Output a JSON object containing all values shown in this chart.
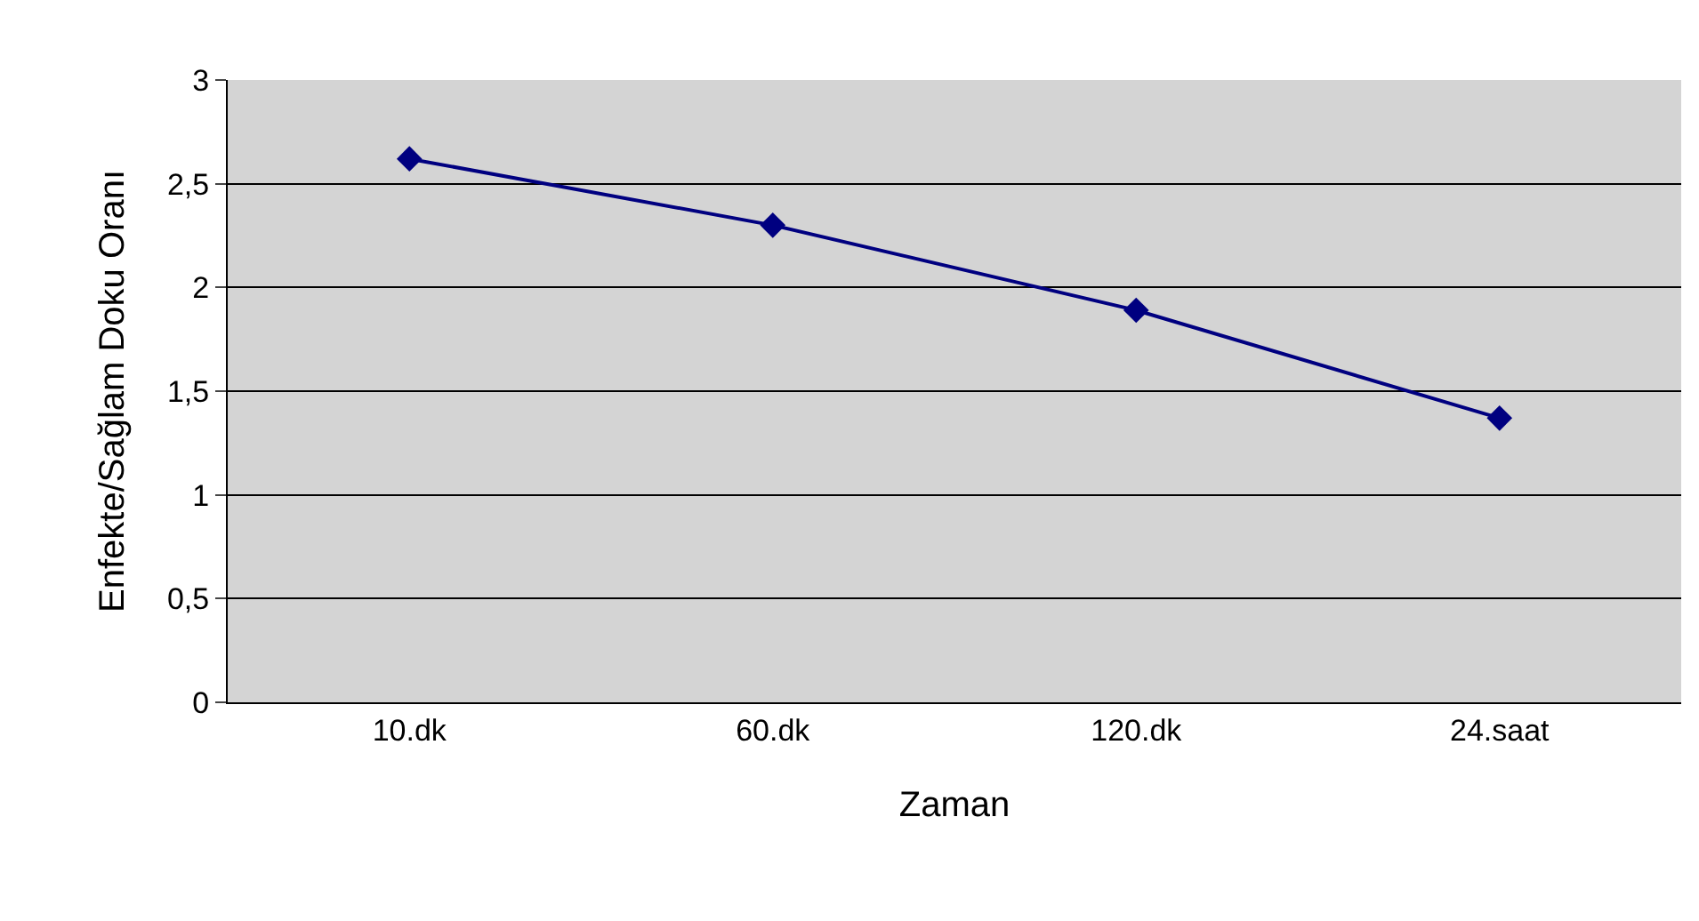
{
  "chart_data": {
    "type": "line",
    "xlabel": "Zaman",
    "ylabel": "Enfekte/Sağlam Doku Oranı",
    "categories": [
      "10.dk",
      "60.dk",
      "120.dk",
      "24.saat"
    ],
    "series": [
      {
        "color": "#000080",
        "values": [
          2.62,
          2.3,
          1.89,
          1.37
        ]
      }
    ],
    "ylim": [
      0,
      3
    ],
    "yticks": [
      0,
      {
        "value": 0.5,
        "label": "0,5"
      },
      1,
      {
        "value": 1.5,
        "label": "1,5"
      },
      2,
      {
        "value": 2.5,
        "label": "2,5"
      },
      3
    ],
    "grid": "y",
    "legend": false,
    "marker": "diamond",
    "line_style": "solid"
  }
}
